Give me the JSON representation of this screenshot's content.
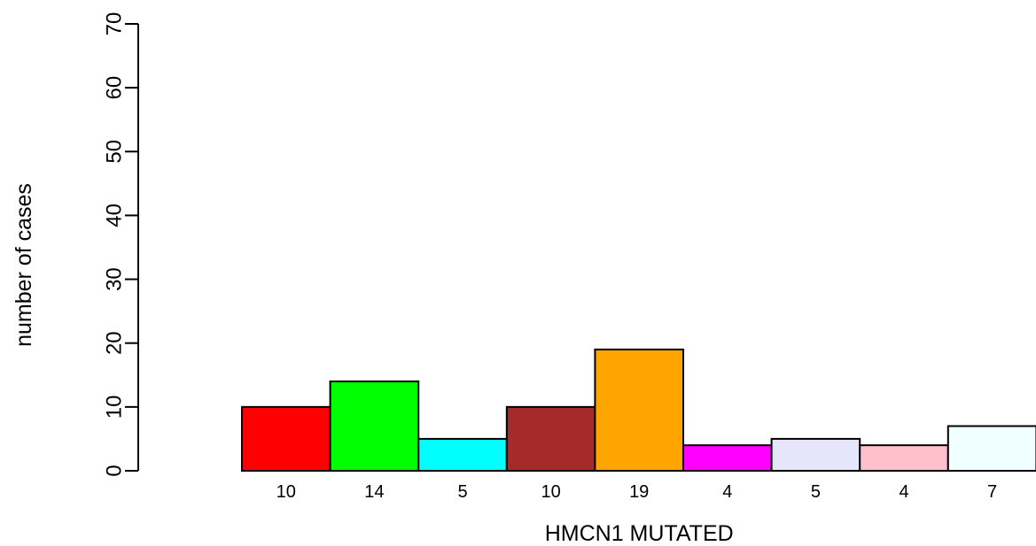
{
  "chart_data": {
    "type": "bar",
    "xlabel": "HMCN1 MUTATED",
    "ylabel": "number of cases",
    "ylim": [
      0,
      70
    ],
    "yticks": [
      "0",
      "10",
      "20",
      "30",
      "40",
      "50",
      "60",
      "70"
    ],
    "categories": [
      "10",
      "14",
      "5",
      "10",
      "19",
      "4",
      "5",
      "4",
      "7"
    ],
    "values": [
      10,
      14,
      5,
      10,
      19,
      4,
      5,
      4,
      7
    ],
    "colors": [
      "#ff0000",
      "#00ff00",
      "#00ffff",
      "#a52a2a",
      "#ffa500",
      "#ff00ff",
      "#e6e6fa",
      "#ffc0cb",
      "#f0ffff"
    ],
    "grid": false,
    "legend": "none"
  }
}
